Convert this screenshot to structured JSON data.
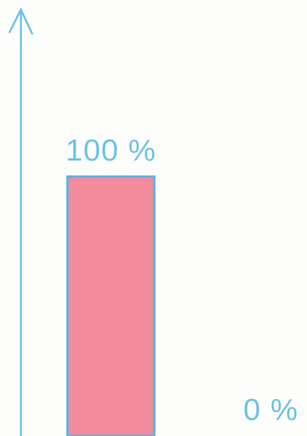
{
  "chart_data": {
    "type": "bar",
    "categories": [
      null,
      null
    ],
    "values": [
      100,
      0
    ],
    "value_labels": [
      "100 %",
      "0 %"
    ],
    "color": "#f28b9c",
    "edge_color": "#5ab4e0",
    "ylim": [
      0,
      165
    ]
  }
}
